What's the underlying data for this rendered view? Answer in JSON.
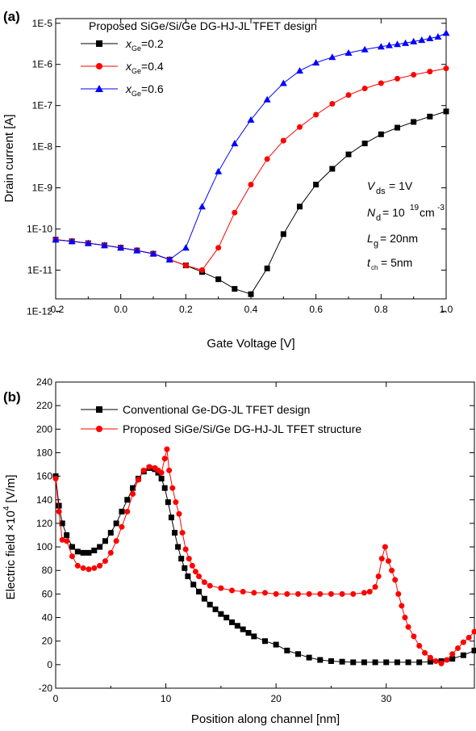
{
  "chart_data": [
    {
      "panel": "(a)",
      "type": "line",
      "title": "",
      "xlabel": "Gate Voltage [V]",
      "ylabel": "Drain current [A]",
      "xlim": [
        -0.2,
        1.0
      ],
      "ylim": [
        2e-12,
        1.3e-05
      ],
      "yscale": "log",
      "xticks": [
        "-0.2",
        "0.0",
        "0.2",
        "0.4",
        "0.6",
        "0.8",
        "1.0"
      ],
      "yticks": [
        "1E-12",
        "1E-11",
        "1E-10",
        "1E-9",
        "1E-8",
        "1E-7",
        "1E-6",
        "1E-5"
      ],
      "legend_title": "Proposed SiGe/Si/Ge DG-HJ-JL TFET design",
      "legend_position": "top-left",
      "annotations": {
        "vds": "1V",
        "nd_exp": "19",
        "nd_unit": "cm",
        "nd_unit_exp": "-3",
        "lg": "= 20nm",
        "tch": "= 5nm"
      },
      "series": [
        {
          "name": "x_Ge=0.2",
          "legend_value": "=0.2",
          "color": "#000000",
          "marker": "square",
          "x": [
            -0.2,
            -0.15,
            -0.1,
            -0.05,
            0.0,
            0.05,
            0.1,
            0.15,
            0.2,
            0.25,
            0.3,
            0.35,
            0.4,
            0.45,
            0.5,
            0.55,
            0.6,
            0.65,
            0.7,
            0.75,
            0.8,
            0.85,
            0.9,
            0.95,
            1.0
          ],
          "y": [
            5.5e-11,
            5e-11,
            4.5e-11,
            4e-11,
            3.5e-11,
            3e-11,
            2.5e-11,
            1.8e-11,
            1.3e-11,
            9e-12,
            6e-12,
            3.5e-12,
            2.6e-12,
            1.1e-11,
            7.5e-11,
            3.5e-10,
            1.2e-09,
            2.9e-09,
            6.5e-09,
            1.2e-08,
            2e-08,
            2.9e-08,
            4e-08,
            5.4e-08,
            7.2e-08
          ]
        },
        {
          "name": "x_Ge=0.4",
          "legend_value": "=0.4",
          "color": "#ff0000",
          "marker": "circle",
          "x": [
            -0.2,
            -0.15,
            -0.1,
            -0.05,
            0.0,
            0.05,
            0.1,
            0.15,
            0.2,
            0.25,
            0.3,
            0.35,
            0.4,
            0.45,
            0.5,
            0.55,
            0.6,
            0.65,
            0.7,
            0.75,
            0.8,
            0.85,
            0.9,
            0.95,
            1.0
          ],
          "y": [
            5.5e-11,
            5e-11,
            4.5e-11,
            4e-11,
            3.5e-11,
            3e-11,
            2.5e-11,
            1.8e-11,
            1.3e-11,
            1e-11,
            3.5e-11,
            2.5e-10,
            1.2e-09,
            5e-09,
            1.4e-08,
            3e-08,
            6e-08,
            1.1e-07,
            1.8e-07,
            2.6e-07,
            3.5e-07,
            4.5e-07,
            5.6e-07,
            6.7e-07,
            8e-07
          ]
        },
        {
          "name": "x_Ge=0.6",
          "legend_value": "=0.6",
          "color": "#0000ff",
          "marker": "triangle",
          "x": [
            -0.2,
            -0.15,
            -0.1,
            -0.05,
            0.0,
            0.05,
            0.1,
            0.15,
            0.2,
            0.25,
            0.3,
            0.35,
            0.4,
            0.45,
            0.5,
            0.55,
            0.6,
            0.65,
            0.7,
            0.75,
            0.8,
            0.825,
            0.85,
            0.875,
            0.9,
            0.925,
            0.95,
            0.975,
            1.0
          ],
          "y": [
            5.5e-11,
            5e-11,
            4.5e-11,
            4e-11,
            3.5e-11,
            3e-11,
            2.5e-11,
            1.8e-11,
            3.5e-11,
            3.5e-10,
            2.5e-09,
            1.2e-08,
            4.5e-08,
            1.4e-07,
            3.5e-07,
            7e-07,
            1.1e-06,
            1.5e-06,
            1.9e-06,
            2.3e-06,
            2.7e-06,
            2.9e-06,
            3.1e-06,
            3.3e-06,
            3.6e-06,
            3.9e-06,
            4.3e-06,
            4.7e-06,
            5.8e-06
          ]
        }
      ]
    },
    {
      "panel": "(b)",
      "type": "line",
      "title": "",
      "xlabel": "Position along channel [nm]",
      "ylabel_prefix": "Electric field",
      "ylabel_times": "×10",
      "ylabel_exp": "4",
      "ylabel_unit": "[V/m]",
      "xlim": [
        0,
        38
      ],
      "ylim": [
        -20,
        240
      ],
      "xticks": [
        "0",
        "10",
        "20",
        "30"
      ],
      "yticks": [
        "-20",
        "0",
        "20",
        "40",
        "60",
        "80",
        "100",
        "120",
        "140",
        "160",
        "180",
        "200",
        "220",
        "240"
      ],
      "legend_position": "top-right",
      "series": [
        {
          "name": "Conventional Ge-DG-JL TFET design",
          "color": "#000000",
          "marker": "square",
          "x": [
            0,
            0.3,
            0.6,
            1,
            1.5,
            2,
            2.5,
            3,
            3.5,
            4,
            4.5,
            5,
            5.5,
            6,
            6.5,
            7,
            7.5,
            8,
            8.5,
            9,
            9.3,
            9.6,
            9.9,
            10.2,
            10.5,
            10.8,
            11.1,
            11.4,
            11.7,
            12,
            12.5,
            13,
            13.5,
            14,
            14.5,
            15,
            15.5,
            16,
            16.5,
            17,
            17.5,
            18,
            19,
            20,
            21,
            22,
            23,
            24,
            25,
            26,
            27,
            28,
            29,
            30,
            31,
            32,
            33,
            34,
            35,
            36,
            37,
            38
          ],
          "y": [
            160,
            135,
            120,
            110,
            100,
            96,
            95,
            95,
            97,
            100,
            105,
            112,
            120,
            130,
            140,
            150,
            158,
            164,
            167,
            166,
            163,
            158,
            150,
            138,
            125,
            112,
            100,
            90,
            82,
            75,
            68,
            62,
            56,
            51,
            47,
            43,
            40,
            36,
            33,
            30,
            27,
            24,
            20,
            17,
            12,
            9,
            6,
            4,
            3,
            2.5,
            2,
            2,
            2,
            2,
            2,
            2,
            2,
            2.5,
            3,
            5,
            8,
            12
          ]
        },
        {
          "name": "Proposed SiGe/Si/Ge DG-HJ-JL TFET structure",
          "color": "#ff0000",
          "marker": "circle",
          "x": [
            0,
            0.3,
            0.6,
            1,
            1.5,
            2,
            2.5,
            3,
            3.5,
            4,
            4.5,
            5,
            5.5,
            6,
            6.5,
            7,
            7.5,
            8,
            8.5,
            9,
            9.3,
            9.6,
            9.9,
            10.1,
            10.3,
            10.6,
            10.9,
            11.2,
            11.5,
            11.8,
            12.1,
            12.4,
            12.7,
            13,
            13.5,
            14,
            15,
            16,
            17,
            18,
            19,
            20,
            21,
            22,
            23,
            24,
            25,
            26,
            27,
            28,
            28.5,
            29,
            29.3,
            29.6,
            29.9,
            30.2,
            30.5,
            30.8,
            31.1,
            31.4,
            31.7,
            32,
            32.5,
            33,
            33.5,
            34,
            34.5,
            35,
            35.5,
            36,
            36.5,
            37,
            37.5,
            38
          ],
          "y": [
            158,
            130,
            106,
            105,
            92,
            84,
            82,
            81,
            82,
            84,
            88,
            95,
            105,
            117,
            130,
            145,
            157,
            165,
            168,
            167,
            165,
            163,
            175,
            183,
            165,
            150,
            138,
            128,
            112,
            98,
            90,
            84,
            79,
            75,
            70,
            67,
            65,
            63,
            62,
            61,
            61,
            60,
            60,
            60,
            60,
            60,
            60,
            60,
            60,
            61,
            62,
            66,
            75,
            90,
            100,
            88,
            80,
            72,
            60,
            50,
            40,
            32,
            24,
            16,
            10,
            6,
            3,
            1,
            4,
            9,
            14,
            19,
            23,
            28
          ]
        }
      ]
    }
  ]
}
